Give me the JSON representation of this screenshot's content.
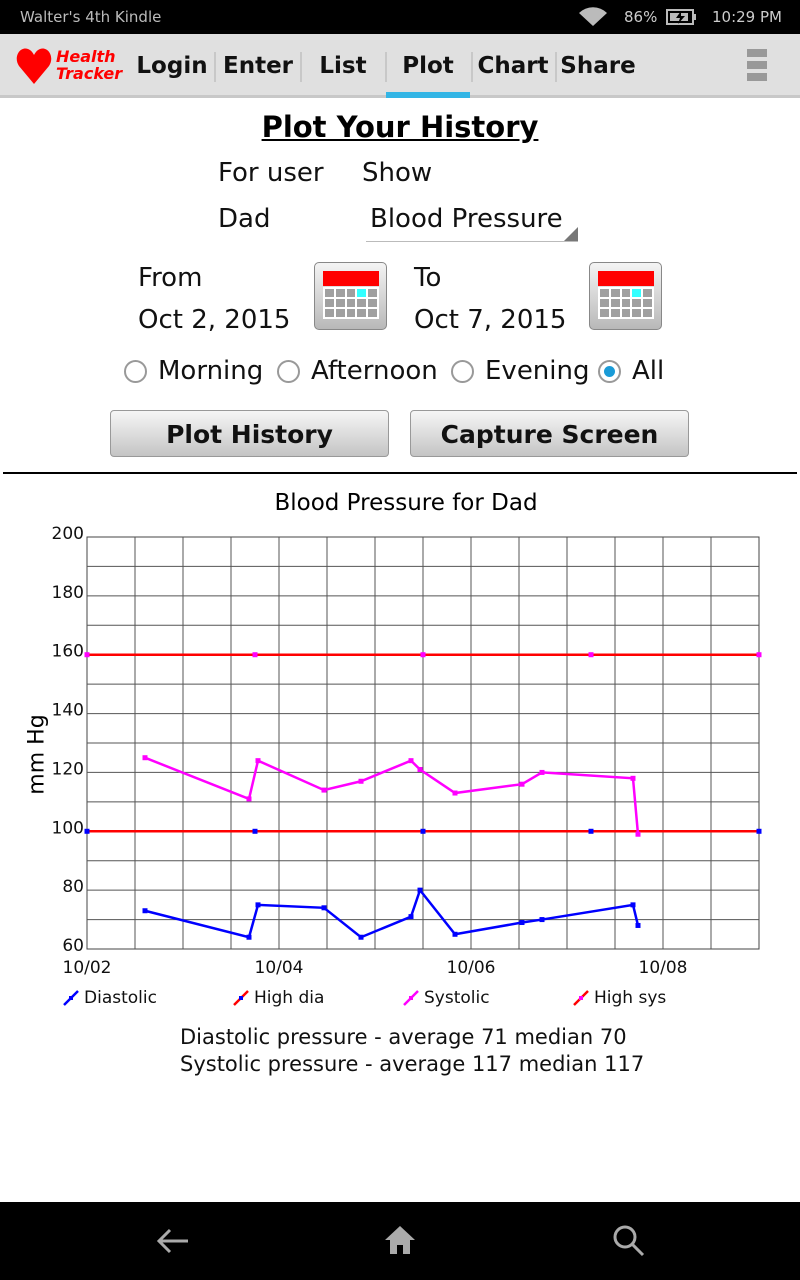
{
  "status_bar": {
    "device_name": "Walter's 4th Kindle",
    "battery": "86%",
    "time": "10:29 PM",
    "icons": [
      "wifi-icon",
      "battery-charging-icon"
    ]
  },
  "app": {
    "logo_line1": "Health",
    "logo_line2": "Tracker",
    "logo_icon": "heart-icon"
  },
  "tabs": [
    {
      "label": "Login"
    },
    {
      "label": "Enter"
    },
    {
      "label": "List"
    },
    {
      "label": "Plot",
      "selected": true
    },
    {
      "label": "Chart"
    },
    {
      "label": "Share"
    }
  ],
  "menu_icon": "overflow-menu-icon",
  "form": {
    "title": "Plot Your History",
    "for_user_label": "For user",
    "user": "Dad",
    "show_label": "Show",
    "show_value": "Blood Pressure",
    "from_label": "From",
    "from_date": "Oct  2,  2015",
    "to_label": "To",
    "to_date": "Oct  7,  2015",
    "radios": [
      {
        "label": "Morning",
        "checked": false
      },
      {
        "label": "Afternoon",
        "checked": false
      },
      {
        "label": "Evening",
        "checked": false
      },
      {
        "label": "All",
        "checked": true
      }
    ],
    "plot_button": "Plot History",
    "capture_button": "Capture Screen"
  },
  "chart_data": {
    "type": "line",
    "title": "Blood Pressure for Dad",
    "ylabel": "mm Hg",
    "xlabel": "",
    "ylim": [
      60,
      200
    ],
    "yticks": [
      60,
      80,
      100,
      120,
      140,
      160,
      180,
      200
    ],
    "xlim": [
      "2015-10-02T00:00",
      "2015-10-09T00:00"
    ],
    "xticks": [
      {
        "value": "2015-10-02T00:00",
        "label": "10/02"
      },
      {
        "value": "2015-10-04T00:00",
        "label": "10/04"
      },
      {
        "value": "2015-10-06T00:00",
        "label": "10/06"
      },
      {
        "value": "2015-10-08T00:00",
        "label": "10/08"
      }
    ],
    "grid": true,
    "legend_placement": "bottom",
    "series": [
      {
        "name": "Diastolic",
        "color": "#0000ff",
        "x": [
          "2015-10-02T14:30",
          "2015-10-03T16:30",
          "2015-10-03T18:45",
          "2015-10-04T11:15",
          "2015-10-04T20:30",
          "2015-10-05T09:00",
          "2015-10-05T11:15",
          "2015-10-05T20:00",
          "2015-10-06T12:45",
          "2015-10-06T17:45",
          "2015-10-07T16:30",
          "2015-10-07T17:45"
        ],
        "y": [
          73,
          64,
          75,
          74,
          64,
          71,
          80,
          65,
          69,
          70,
          75,
          68
        ]
      },
      {
        "name": "High dia",
        "color": "#ff0000",
        "marker_color": "#0000ff",
        "x": [
          "2015-10-02T00:00",
          "2015-10-03T18:00",
          "2015-10-05T12:00",
          "2015-10-07T06:00",
          "2015-10-09T00:00"
        ],
        "y": [
          100,
          100,
          100,
          100,
          100
        ]
      },
      {
        "name": "Systolic",
        "color": "#ff00ff",
        "x": [
          "2015-10-02T14:30",
          "2015-10-03T16:30",
          "2015-10-03T18:45",
          "2015-10-04T11:15",
          "2015-10-04T20:30",
          "2015-10-05T09:00",
          "2015-10-05T11:15",
          "2015-10-05T20:00",
          "2015-10-06T12:45",
          "2015-10-06T17:45",
          "2015-10-07T16:30",
          "2015-10-07T17:45"
        ],
        "y": [
          125,
          111,
          124,
          114,
          117,
          124,
          121,
          113,
          116,
          120,
          118,
          99
        ]
      },
      {
        "name": "High sys",
        "color": "#ff0000",
        "marker_color": "#ff00ff",
        "x": [
          "2015-10-02T00:00",
          "2015-10-03T18:00",
          "2015-10-05T12:00",
          "2015-10-07T06:00",
          "2015-10-09T00:00"
        ],
        "y": [
          160,
          160,
          160,
          160,
          160
        ]
      }
    ]
  },
  "stats": {
    "diastolic": "Diastolic pressure - average 71 median 70",
    "systolic": "Systolic pressure - average 117 median 117"
  },
  "nav_bar": {
    "icons": [
      "back-icon",
      "home-icon",
      "search-icon"
    ]
  }
}
